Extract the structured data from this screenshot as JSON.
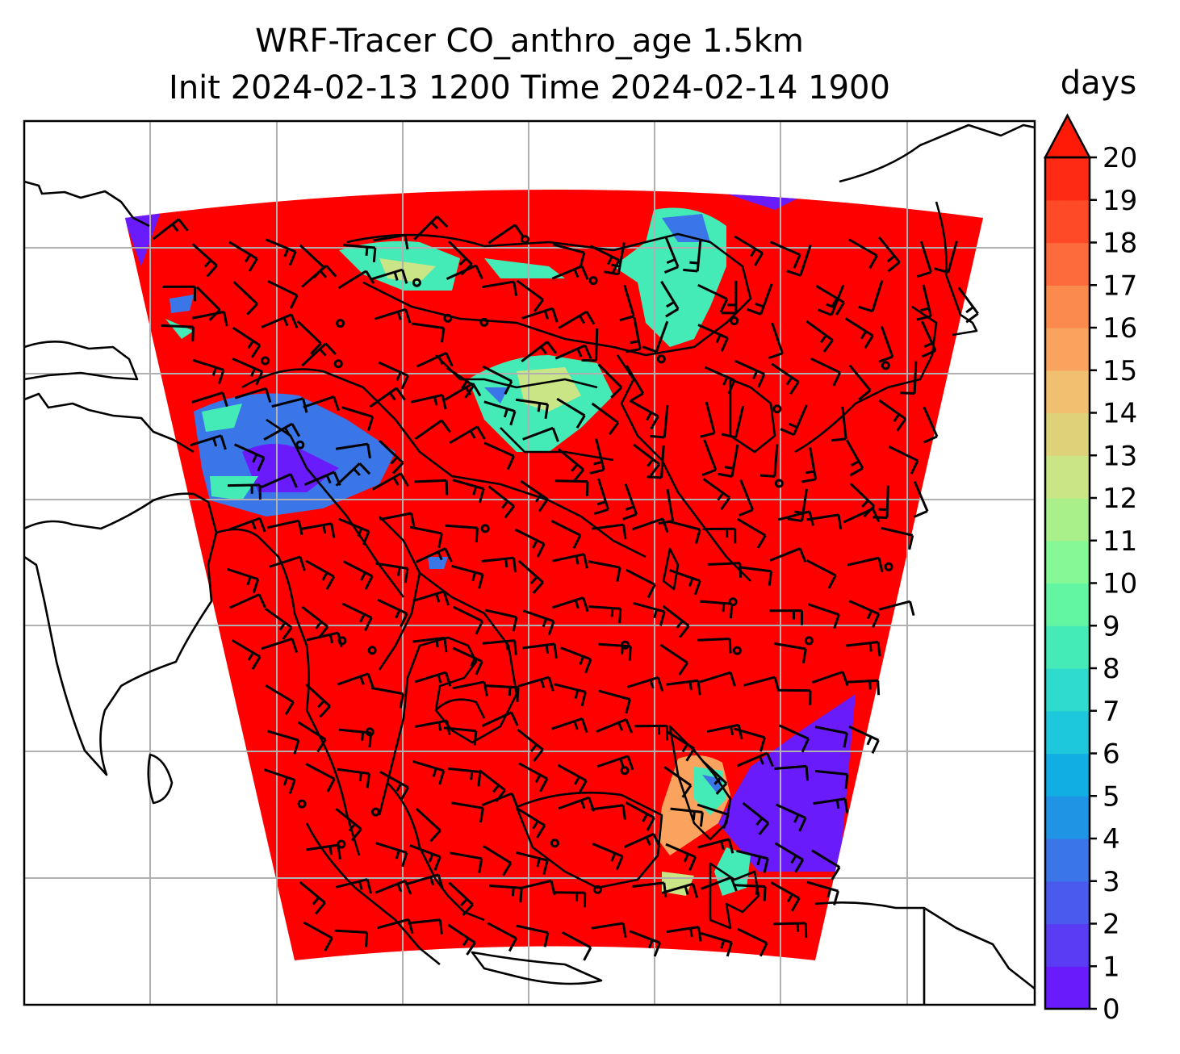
{
  "title": {
    "line1": "WRF-Tracer CO_anthro_age 1.5km",
    "line2": "Init 2024-02-13 1200 Time 2024-02-14 1900"
  },
  "colorbar": {
    "unit": "days",
    "min": 0,
    "max": 20,
    "extend": "max",
    "tick_labels": [
      "0",
      "1",
      "2",
      "3",
      "4",
      "5",
      "6",
      "7",
      "8",
      "9",
      "10",
      "11",
      "12",
      "13",
      "14",
      "15",
      "16",
      "17",
      "18",
      "19",
      "20"
    ],
    "colors": [
      "#6a1bfb",
      "#5a3cf5",
      "#4a5aee",
      "#3a76e8",
      "#1f93e4",
      "#10aee3",
      "#1ec8dc",
      "#2fdbcc",
      "#45ebb7",
      "#62f5a2",
      "#84f995",
      "#a9f08a",
      "#c9e585",
      "#ddd27a",
      "#f0c070",
      "#f9a35e",
      "#fb8a4d",
      "#fd6a3c",
      "#ff4a28",
      "#ff2a14"
    ],
    "extend_color": "#ff1a08"
  },
  "map": {
    "field_colors": {
      "background": "#ff0000",
      "young_low": "#6a1bfb",
      "young_mid": "#3a76e8",
      "mid": "#45ebb7",
      "older": "#c9e585",
      "oldest": "#f9a35e"
    },
    "gridlines": "on",
    "wind_barbs": "on",
    "coastlines": "on"
  }
}
